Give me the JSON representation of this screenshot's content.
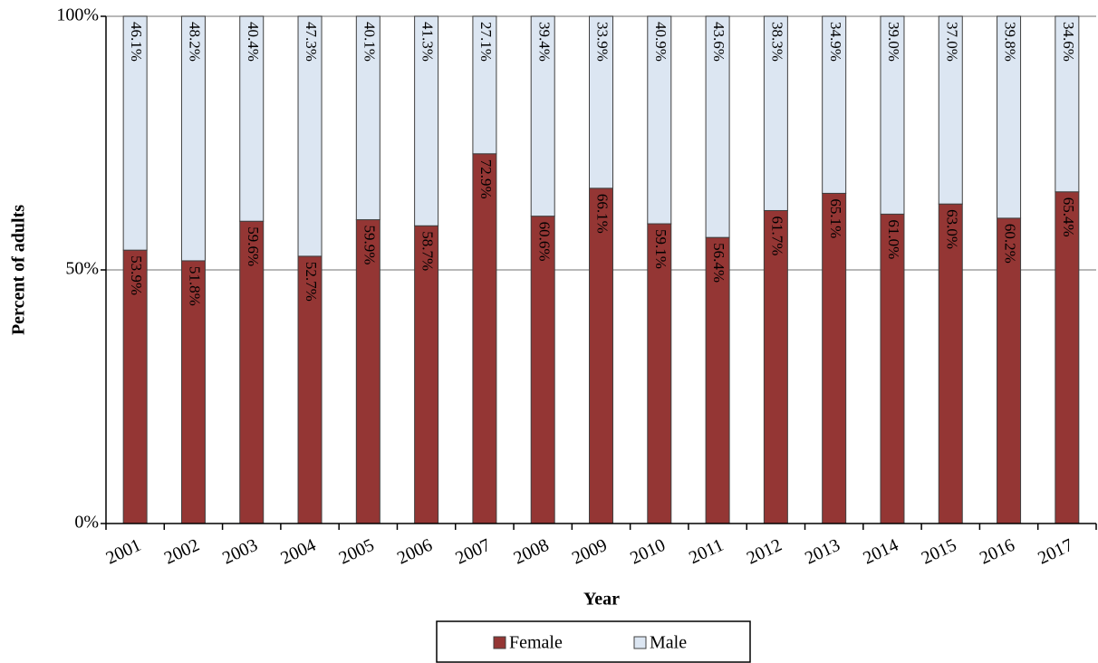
{
  "chart_data": {
    "type": "stacked-bar",
    "y_label": "Percent of adults",
    "x_label": "Year",
    "categories": [
      "2001",
      "2002",
      "2003",
      "2004",
      "2005",
      "2006",
      "2007",
      "2008",
      "2009",
      "2010",
      "2011",
      "2012",
      "2013",
      "2014",
      "2015",
      "2016",
      "2017"
    ],
    "series": [
      {
        "name": "Female",
        "color": "#943634",
        "values": [
          53.9,
          51.8,
          59.6,
          52.7,
          59.9,
          58.7,
          72.9,
          60.6,
          66.1,
          59.1,
          56.4,
          61.7,
          65.1,
          61.0,
          63.0,
          60.2,
          65.4
        ],
        "value_labels": [
          "53.9%",
          "51.8%",
          "59.6%",
          "52.7%",
          "59.9%",
          "58.7%",
          "72.9%",
          "60.6%",
          "66.1%",
          "59.1%",
          "56.4%",
          "61.7%",
          "65.1%",
          "61.0%",
          "63.0%",
          "60.2%",
          "65.4%"
        ]
      },
      {
        "name": "Male",
        "color": "#dce6f2",
        "values": [
          46.1,
          48.2,
          40.4,
          47.3,
          40.1,
          41.3,
          27.1,
          39.4,
          33.9,
          40.9,
          43.6,
          38.3,
          34.9,
          39.0,
          37.0,
          39.8,
          34.6
        ],
        "value_labels": [
          "46.1%",
          "48.2%",
          "40.4%",
          "47.3%",
          "40.1%",
          "41.3%",
          "27.1%",
          "39.4%",
          "33.9%",
          "40.9%",
          "43.6%",
          "38.3%",
          "34.9%",
          "39.0%",
          "37.0%",
          "39.8%",
          "34.6%"
        ]
      }
    ],
    "ylim": [
      0,
      100
    ],
    "yticks": [
      {
        "value": 0,
        "label": "0%"
      },
      {
        "value": 50,
        "label": "50%"
      },
      {
        "value": 100,
        "label": "100%"
      }
    ],
    "grid": true,
    "legend": "bottom"
  }
}
